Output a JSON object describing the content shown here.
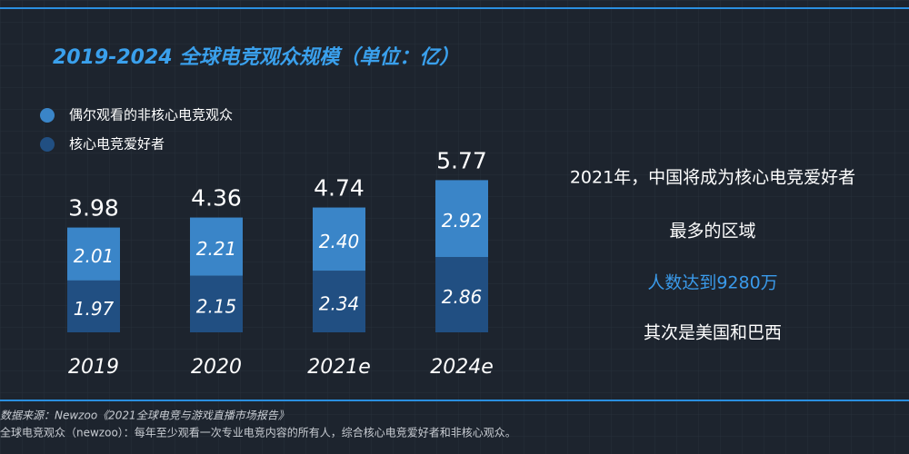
{
  "chart_data": {
    "type": "bar",
    "stacked": true,
    "title": "2019-2024 全球电竞观众规模（单位：亿）",
    "categories": [
      "2019",
      "2020",
      "2021e",
      "2024e"
    ],
    "series": [
      {
        "name": "核心电竞爱好者",
        "color": "#214f82",
        "values": [
          1.97,
          2.15,
          2.34,
          2.86
        ],
        "value_labels": [
          "1.97",
          "2.15",
          "2.34",
          "2.86"
        ]
      },
      {
        "name": "偶尔观看的非核心电竞观众",
        "color": "#3a85c8",
        "values": [
          2.01,
          2.21,
          2.4,
          2.92
        ],
        "value_labels": [
          "2.01",
          "2.21",
          "2.40",
          "2.92"
        ]
      }
    ],
    "totals": [
      3.98,
      4.36,
      4.74,
      5.77
    ],
    "notes": [
      "2021年，中国将成为核心电竞爱好者",
      "最多的区域",
      "人数达到9280万",
      "其次是美国和巴西"
    ],
    "source": "数据来源：Newzoo《2021全球电竞与游戏直播市场报告》",
    "footnote": "全球电竞观众（newzoo）：每年至少观看一次专业电竞内容的所有人，综合核心电竞爱好者和非核心观众。"
  }
}
